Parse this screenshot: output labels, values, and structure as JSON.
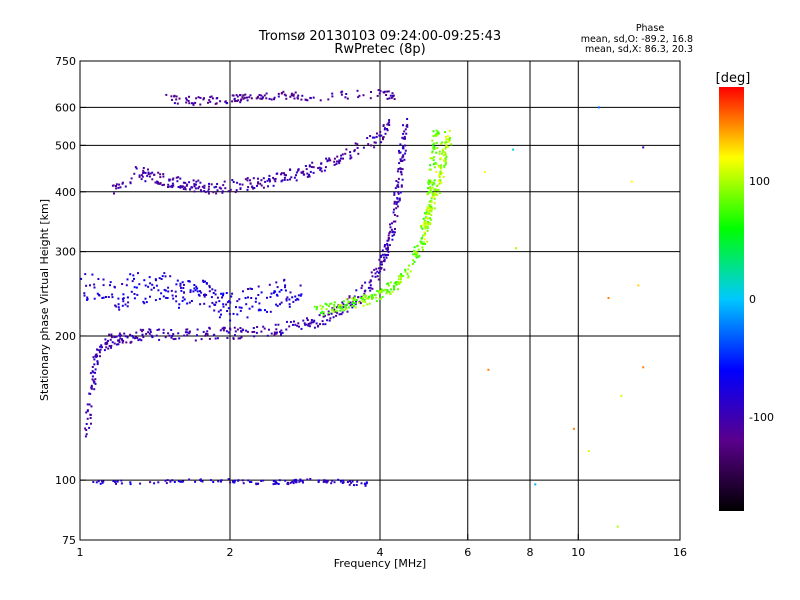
{
  "chart_data": {
    "type": "scatter",
    "title": "Tromsø 20130103 09:24:00-09:25:43",
    "subtitle": "RwPretec (8p)",
    "xlabel": "Frequency [MHz]",
    "ylabel": "Stationary phase Virtual Height [km]",
    "x_scale": "log",
    "y_scale": "log",
    "xlim": [
      1,
      16
    ],
    "ylim": [
      75,
      750
    ],
    "x_ticks": [
      1,
      2,
      4,
      6,
      8,
      10,
      16
    ],
    "x_tick_labels": [
      "1",
      "2",
      "4",
      "6",
      "8",
      "10",
      "16"
    ],
    "x_grid_lines": [
      2,
      4,
      6,
      8,
      10
    ],
    "y_ticks": [
      75,
      100,
      200,
      300,
      400,
      500,
      600,
      750
    ],
    "y_tick_labels": [
      "75",
      "100",
      "200",
      "300",
      "400",
      "500",
      "600",
      "750"
    ],
    "y_grid_lines": [
      100,
      200,
      300,
      400,
      500,
      600
    ],
    "grid": true,
    "stats": {
      "header": "Phase",
      "line_o": "mean, sd,O: -89.2, 16.8",
      "line_x": "mean, sd,X:  86.3, 20.3"
    },
    "colorbar": {
      "label": "[deg]",
      "range": [
        -180,
        180
      ],
      "ticks": [
        100,
        0,
        -100
      ],
      "tick_labels": [
        "100",
        "0",
        "-100"
      ]
    },
    "color_stops": [
      "#000000",
      "#5a008c",
      "#0000ff",
      "#00c8ff",
      "#00ff00",
      "#ffff00",
      "#ff0000"
    ],
    "traces": [
      {
        "name": "",
        "phase": -100,
        "spread": 0.03,
        "points": [
          [
            1.03,
            120
          ],
          [
            1.05,
            150
          ],
          [
            1.07,
            175
          ],
          [
            1.1,
            188
          ],
          [
            1.15,
            195
          ],
          [
            1.2,
            198
          ],
          [
            1.3,
            200
          ],
          [
            1.4,
            201
          ],
          [
            1.6,
            201
          ],
          [
            1.8,
            202
          ],
          [
            2.0,
            203
          ],
          [
            2.2,
            204
          ],
          [
            2.5,
            206
          ],
          [
            2.8,
            210
          ],
          [
            3.0,
            215
          ],
          [
            3.2,
            222
          ],
          [
            3.4,
            230
          ],
          [
            3.6,
            240
          ],
          [
            3.8,
            255
          ],
          [
            4.0,
            275
          ],
          [
            4.1,
            295
          ],
          [
            4.2,
            320
          ],
          [
            4.3,
            360
          ],
          [
            4.35,
            400
          ],
          [
            4.4,
            450
          ],
          [
            4.45,
            500
          ],
          [
            4.5,
            560
          ]
        ]
      },
      {
        "name": "",
        "phase": -80,
        "spread": 0.07,
        "points": [
          [
            1.0,
            250
          ],
          [
            1.1,
            260
          ],
          [
            1.2,
            240
          ],
          [
            1.3,
            255
          ],
          [
            1.4,
            245
          ],
          [
            1.5,
            260
          ],
          [
            1.6,
            240
          ],
          [
            1.7,
            250
          ],
          [
            1.8,
            240
          ],
          [
            1.9,
            230
          ],
          [
            2.0,
            230
          ],
          [
            2.2,
            235
          ],
          [
            2.4,
            240
          ],
          [
            2.6,
            245
          ],
          [
            2.8,
            240
          ]
        ]
      },
      {
        "name": "",
        "phase": -105,
        "spread": 0.03,
        "points": [
          [
            1.15,
            400
          ],
          [
            1.3,
            440
          ],
          [
            1.4,
            430
          ],
          [
            1.5,
            420
          ],
          [
            1.6,
            415
          ],
          [
            1.7,
            410
          ],
          [
            1.8,
            405
          ],
          [
            2.0,
            410
          ],
          [
            2.2,
            415
          ],
          [
            2.4,
            420
          ],
          [
            2.6,
            430
          ],
          [
            2.8,
            440
          ],
          [
            3.0,
            450
          ],
          [
            3.3,
            470
          ],
          [
            3.6,
            490
          ],
          [
            4.0,
            520
          ],
          [
            4.2,
            560
          ]
        ]
      },
      {
        "name": "",
        "phase": -110,
        "spread": 0.02,
        "points": [
          [
            1.5,
            625
          ],
          [
            1.7,
            618
          ],
          [
            1.9,
            622
          ],
          [
            2.1,
            628
          ],
          [
            2.3,
            632
          ],
          [
            2.6,
            636
          ],
          [
            2.9,
            632
          ],
          [
            4.0,
            640
          ],
          [
            4.3,
            630
          ]
        ]
      },
      {
        "name": "",
        "phase": 85,
        "spread": 0.025,
        "points": [
          [
            3.0,
            225
          ],
          [
            3.2,
            230
          ],
          [
            3.4,
            232
          ],
          [
            3.6,
            235
          ],
          [
            3.8,
            240
          ],
          [
            4.0,
            245
          ],
          [
            4.2,
            252
          ],
          [
            4.4,
            262
          ],
          [
            4.6,
            280
          ],
          [
            4.8,
            305
          ],
          [
            4.9,
            330
          ],
          [
            5.0,
            360
          ],
          [
            5.05,
            400
          ],
          [
            5.1,
            450
          ],
          [
            5.15,
            500
          ],
          [
            5.2,
            540
          ]
        ]
      },
      {
        "name": "",
        "phase": 100,
        "spread": 0.04,
        "points": [
          [
            4.9,
            320
          ],
          [
            5.0,
            350
          ],
          [
            5.1,
            380
          ],
          [
            5.2,
            410
          ],
          [
            5.3,
            440
          ],
          [
            5.35,
            470
          ],
          [
            5.4,
            500
          ],
          [
            5.5,
            520
          ]
        ]
      },
      {
        "name": "",
        "phase": -85,
        "spread": 0.01,
        "points": [
          [
            1.05,
            99
          ],
          [
            1.4,
            99
          ],
          [
            1.8,
            100
          ],
          [
            2.2,
            99
          ],
          [
            2.6,
            99
          ],
          [
            3.0,
            100
          ],
          [
            3.4,
            99
          ],
          [
            3.8,
            98
          ]
        ]
      }
    ],
    "extra_points": [
      {
        "x": 6.6,
        "y": 170,
        "phase": 150
      },
      {
        "x": 9.8,
        "y": 128,
        "phase": 150
      },
      {
        "x": 10.5,
        "y": 115,
        "phase": 110
      },
      {
        "x": 11.5,
        "y": 240,
        "phase": 150
      },
      {
        "x": 13.2,
        "y": 255,
        "phase": 130
      },
      {
        "x": 12.2,
        "y": 150,
        "phase": 110
      },
      {
        "x": 12.0,
        "y": 80,
        "phase": 100
      },
      {
        "x": 13.5,
        "y": 172,
        "phase": 150
      },
      {
        "x": 7.4,
        "y": 490,
        "phase": 10
      },
      {
        "x": 8.2,
        "y": 98,
        "phase": -10
      },
      {
        "x": 13.5,
        "y": 495,
        "phase": -100
      },
      {
        "x": 12.8,
        "y": 420,
        "phase": 120
      },
      {
        "x": 11.0,
        "y": 600,
        "phase": -30
      },
      {
        "x": 7.5,
        "y": 305,
        "phase": 100
      },
      {
        "x": 6.5,
        "y": 440,
        "phase": 120
      }
    ]
  }
}
